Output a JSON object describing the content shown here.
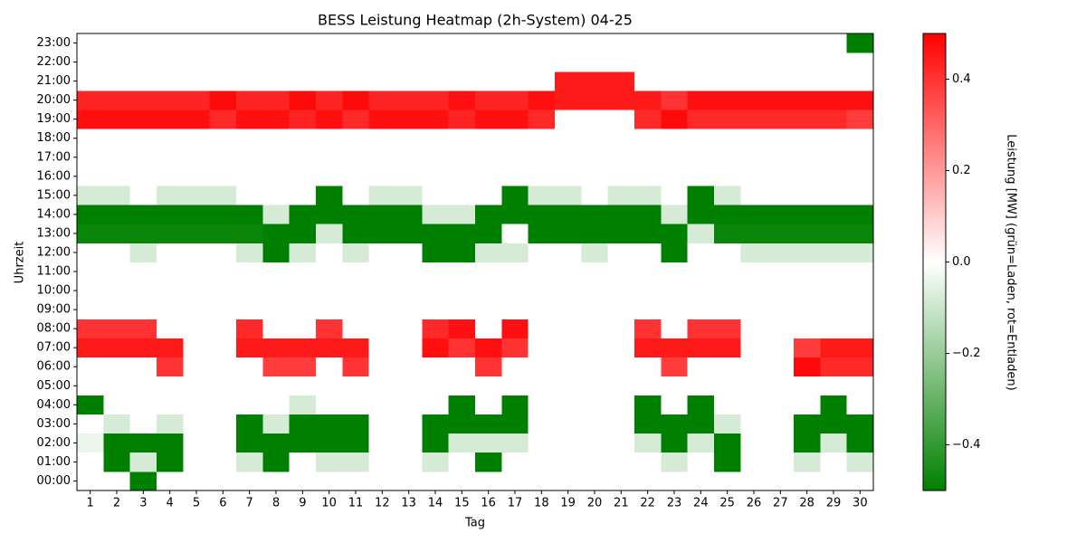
{
  "chart_data": {
    "type": "heatmap",
    "title": "BESS Leistung Heatmap (2h-System) 04-25",
    "x_label": "Tag",
    "y_label": "Uhrzeit",
    "colorbar_label": "Leistung [MW] (grün=Laden, rot=Entladen)",
    "x_categories": [
      1,
      2,
      3,
      4,
      5,
      6,
      7,
      8,
      9,
      10,
      11,
      12,
      13,
      14,
      15,
      16,
      17,
      18,
      19,
      20,
      21,
      22,
      23,
      24,
      25,
      26,
      27,
      28,
      29,
      30
    ],
    "y_categories": [
      "00:00",
      "01:00",
      "02:00",
      "03:00",
      "04:00",
      "05:00",
      "06:00",
      "07:00",
      "08:00",
      "09:00",
      "10:00",
      "11:00",
      "12:00",
      "13:00",
      "14:00",
      "15:00",
      "16:00",
      "17:00",
      "18:00",
      "19:00",
      "20:00",
      "21:00",
      "22:00",
      "23:00"
    ],
    "colormap": [
      "#008000",
      "#ffffff",
      "#ff0000"
    ],
    "clim": [
      -0.5,
      0.5
    ],
    "cticks": [
      {
        "value": -0.4,
        "label": "−0.4"
      },
      {
        "value": -0.2,
        "label": "−0.2"
      },
      {
        "value": 0,
        "label": "0.0"
      },
      0.2,
      0.4
    ],
    "values": [
      [
        0,
        0,
        -0.5,
        0,
        0,
        0,
        0,
        0,
        0,
        0,
        0,
        0,
        0,
        0,
        0,
        0,
        0,
        0,
        0,
        0,
        0,
        0,
        0,
        0,
        0,
        0,
        0,
        0,
        0,
        0
      ],
      [
        0,
        -0.5,
        -0.08,
        -0.5,
        0,
        0,
        -0.08,
        -0.5,
        0,
        -0.08,
        -0.08,
        0,
        0,
        -0.08,
        0,
        -0.5,
        0,
        0,
        0,
        0,
        0,
        0,
        -0.08,
        0,
        -0.5,
        0,
        0,
        -0.08,
        0,
        -0.08
      ],
      [
        -0.04,
        -0.5,
        -0.5,
        -0.5,
        0,
        0,
        -0.5,
        -0.5,
        -0.5,
        -0.5,
        -0.5,
        0,
        0,
        -0.5,
        -0.08,
        -0.08,
        -0.08,
        0,
        0,
        0,
        0,
        -0.08,
        -0.5,
        -0.08,
        -0.5,
        0,
        0,
        -0.5,
        -0.08,
        -0.5
      ],
      [
        0,
        -0.08,
        0,
        -0.08,
        0,
        0,
        -0.5,
        -0.08,
        -0.5,
        -0.5,
        -0.5,
        0,
        0,
        -0.5,
        -0.5,
        -0.5,
        -0.5,
        0,
        0,
        0,
        0,
        -0.5,
        -0.5,
        -0.5,
        -0.08,
        0,
        0,
        -0.5,
        -0.5,
        -0.5
      ],
      [
        -0.5,
        0,
        0,
        0,
        0,
        0,
        0,
        0,
        -0.08,
        0,
        0,
        0,
        0,
        0,
        -0.5,
        0,
        -0.5,
        0,
        0,
        0,
        0,
        -0.5,
        0,
        -0.5,
        0,
        0,
        0,
        0,
        -0.5,
        0
      ],
      [
        0,
        0,
        0,
        0,
        0,
        0,
        0,
        0,
        0,
        0,
        0,
        0,
        0,
        0,
        0,
        0,
        0,
        0,
        0,
        0,
        0,
        0,
        0,
        0,
        0,
        0,
        0,
        0,
        0,
        0
      ],
      [
        0,
        0,
        0,
        0.4,
        0,
        0,
        0,
        0.38,
        0.38,
        0,
        0.4,
        0,
        0,
        0,
        0,
        0.4,
        0,
        0,
        0,
        0,
        0,
        0,
        0.38,
        0,
        0,
        0,
        0,
        0.48,
        0.42,
        0.42
      ],
      [
        0.45,
        0.45,
        0.45,
        0.45,
        0,
        0,
        0.45,
        0.45,
        0.45,
        0.45,
        0.45,
        0,
        0,
        0.47,
        0.4,
        0.47,
        0.4,
        0,
        0,
        0,
        0,
        0.45,
        0.45,
        0.45,
        0.45,
        0,
        0,
        0.38,
        0.45,
        0.45
      ],
      [
        0.4,
        0.4,
        0.4,
        0,
        0,
        0,
        0.42,
        0,
        0,
        0.4,
        0,
        0,
        0,
        0.42,
        0.47,
        0,
        0.47,
        0,
        0,
        0,
        0,
        0.4,
        0,
        0.4,
        0.4,
        0,
        0,
        0,
        0,
        0
      ],
      [
        0,
        0,
        0,
        0,
        0,
        0,
        0,
        0,
        0,
        0,
        0,
        0,
        0,
        0,
        0,
        0,
        0,
        0,
        0,
        0,
        0,
        0,
        0,
        0,
        0,
        0,
        0,
        0,
        0,
        0
      ],
      [
        0,
        0,
        0,
        0,
        0,
        0,
        0,
        0,
        0,
        0,
        0,
        0,
        0,
        0,
        0,
        0,
        0,
        0,
        0,
        0,
        0,
        0,
        0,
        0,
        0,
        0,
        0,
        0,
        0,
        0
      ],
      [
        0,
        0,
        0,
        0,
        0,
        0,
        0,
        0,
        0,
        0,
        0,
        0,
        0,
        0,
        0,
        0,
        0,
        0,
        0,
        0,
        0,
        0,
        0,
        0,
        0,
        0,
        0,
        0,
        0,
        0
      ],
      [
        0,
        0,
        -0.08,
        0,
        0,
        0,
        -0.08,
        -0.5,
        -0.08,
        0,
        -0.08,
        0,
        0,
        -0.5,
        -0.5,
        -0.08,
        -0.08,
        0,
        0,
        -0.08,
        0,
        0,
        -0.5,
        0,
        0,
        -0.08,
        -0.08,
        -0.08,
        -0.08,
        -0.08
      ],
      [
        -0.48,
        -0.48,
        -0.48,
        -0.48,
        -0.48,
        -0.48,
        -0.48,
        -0.5,
        -0.5,
        -0.08,
        -0.5,
        -0.5,
        -0.5,
        -0.5,
        -0.5,
        -0.5,
        0,
        -0.5,
        -0.5,
        -0.5,
        -0.5,
        -0.5,
        -0.5,
        -0.08,
        -0.48,
        -0.48,
        -0.48,
        -0.48,
        -0.48,
        -0.48
      ],
      [
        -0.5,
        -0.5,
        -0.5,
        -0.5,
        -0.5,
        -0.5,
        -0.5,
        -0.08,
        -0.5,
        -0.5,
        -0.5,
        -0.5,
        -0.5,
        -0.08,
        -0.08,
        -0.5,
        -0.5,
        -0.5,
        -0.5,
        -0.5,
        -0.5,
        -0.5,
        -0.08,
        -0.5,
        -0.5,
        -0.5,
        -0.5,
        -0.5,
        -0.5,
        -0.5
      ],
      [
        -0.08,
        -0.08,
        0,
        -0.08,
        -0.08,
        -0.08,
        0,
        0,
        0,
        -0.5,
        0,
        -0.08,
        -0.08,
        0,
        0,
        0,
        -0.5,
        -0.08,
        -0.08,
        0,
        -0.08,
        -0.08,
        0,
        -0.5,
        -0.08,
        0,
        0,
        0,
        0,
        0
      ],
      [
        0,
        0,
        0,
        0,
        0,
        0,
        0,
        0,
        0,
        0,
        0,
        0,
        0,
        0,
        0,
        0,
        0,
        0,
        0,
        0,
        0,
        0,
        0,
        0,
        0,
        0,
        0,
        0,
        0,
        0
      ],
      [
        0,
        0,
        0,
        0,
        0,
        0,
        0,
        0,
        0,
        0,
        0,
        0,
        0,
        0,
        0,
        0,
        0,
        0,
        0,
        0,
        0,
        0,
        0,
        0,
        0,
        0,
        0,
        0,
        0,
        0
      ],
      [
        0,
        0,
        0,
        0,
        0,
        0,
        0,
        0,
        0,
        0,
        0,
        0,
        0,
        0,
        0,
        0,
        0,
        0,
        0,
        0,
        0,
        0,
        0,
        0,
        0,
        0,
        0,
        0,
        0,
        0
      ],
      [
        0.47,
        0.47,
        0.47,
        0.47,
        0.47,
        0.42,
        0.47,
        0.47,
        0.43,
        0.47,
        0.42,
        0.47,
        0.47,
        0.47,
        0.43,
        0.47,
        0.47,
        0.42,
        0,
        0,
        0,
        0.42,
        0.48,
        0.42,
        0.42,
        0.42,
        0.42,
        0.42,
        0.42,
        0.38
      ],
      [
        0.43,
        0.43,
        0.43,
        0.43,
        0.43,
        0.48,
        0.43,
        0.43,
        0.48,
        0.43,
        0.48,
        0.43,
        0.43,
        0.43,
        0.47,
        0.43,
        0.43,
        0.47,
        0.45,
        0.45,
        0.45,
        0.45,
        0.4,
        0.47,
        0.47,
        0.47,
        0.47,
        0.47,
        0.47,
        0.47
      ],
      [
        0,
        0,
        0,
        0,
        0,
        0,
        0,
        0,
        0,
        0,
        0,
        0,
        0,
        0,
        0,
        0,
        0,
        0,
        0.45,
        0.45,
        0.45,
        0,
        0,
        0,
        0,
        0,
        0,
        0,
        0,
        0
      ],
      [
        0,
        0,
        0,
        0,
        0,
        0,
        0,
        0,
        0,
        0,
        0,
        0,
        0,
        0,
        0,
        0,
        0,
        0,
        0,
        0,
        0,
        0,
        0,
        0,
        0,
        0,
        0,
        0,
        0,
        0
      ],
      [
        0,
        0,
        0,
        0,
        0,
        0,
        0,
        0,
        0,
        0,
        0,
        0,
        0,
        0,
        0,
        0,
        0,
        0,
        0,
        0,
        0,
        0,
        0,
        0,
        0,
        0,
        0,
        0,
        0,
        -0.5
      ]
    ]
  }
}
